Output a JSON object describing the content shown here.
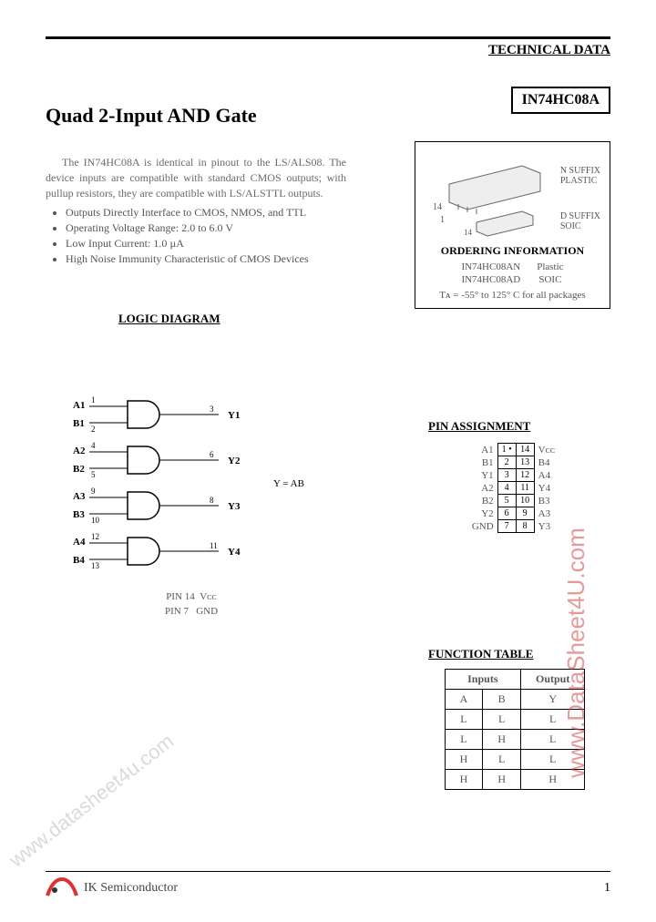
{
  "header": {
    "tech_data": "TECHNICAL DATA"
  },
  "part_number": "IN74HC08A",
  "title": "Quad 2-Input AND Gate",
  "description": "The IN74HC08A is identical in pinout to the LS/ALS08. The device inputs are compatible with standard CMOS outputs; with pullup resistors, they are compatible with LS/ALSTTL outputs.",
  "features": [
    "Outputs Directly Interface to CMOS, NMOS, and TTL",
    "Operating Voltage Range: 2.0 to 6.0 V",
    "Low Input Current: 1.0 µA",
    "High Noise Immunity Characteristic of CMOS Devices"
  ],
  "ordering": {
    "n_suffix": "N SUFFIX\nPLASTIC",
    "d_suffix": "D SUFFIX\nSOIC",
    "title": "ORDERING INFORMATION",
    "rows": [
      {
        "pn": "IN74HC08AN",
        "pkg": "Plastic"
      },
      {
        "pn": "IN74HC08AD",
        "pkg": "SOIC"
      }
    ],
    "temp": "Tᴀ = -55° to 125° C for all packages"
  },
  "logic": {
    "title": "LOGIC DIAGRAM",
    "gates": [
      {
        "a": "A1",
        "ap": "1",
        "b": "B1",
        "bp": "2",
        "y": "Y1",
        "yp": "3"
      },
      {
        "a": "A2",
        "ap": "4",
        "b": "B2",
        "bp": "5",
        "y": "Y2",
        "yp": "6"
      },
      {
        "a": "A3",
        "ap": "9",
        "b": "B3",
        "bp": "10",
        "y": "Y3",
        "yp": "8"
      },
      {
        "a": "A4",
        "ap": "12",
        "b": "B4",
        "bp": "13",
        "y": "Y4",
        "yp": "11"
      }
    ],
    "equation": "Y = AB",
    "pin14": "PIN 14  Vᴄᴄ",
    "pin7": "PIN 7   GND"
  },
  "pin_assignment": {
    "title": "PIN ASSIGNMENT",
    "rows": [
      {
        "l": "A1",
        "ln": "1",
        "rn": "14",
        "r": "Vᴄᴄ"
      },
      {
        "l": "B1",
        "ln": "2",
        "rn": "13",
        "r": "B4"
      },
      {
        "l": "Y1",
        "ln": "3",
        "rn": "12",
        "r": "A4"
      },
      {
        "l": "A2",
        "ln": "4",
        "rn": "11",
        "r": "Y4"
      },
      {
        "l": "B2",
        "ln": "5",
        "rn": "10",
        "r": "B3"
      },
      {
        "l": "Y2",
        "ln": "6",
        "rn": "9",
        "r": "A3"
      },
      {
        "l": "GND",
        "ln": "7",
        "rn": "8",
        "r": "Y3"
      }
    ]
  },
  "function_table": {
    "title": "FUNCTION TABLE",
    "header_inputs": "Inputs",
    "header_output": "Output",
    "cols": [
      "A",
      "B",
      "Y"
    ],
    "rows": [
      [
        "L",
        "L",
        "L"
      ],
      [
        "L",
        "H",
        "L"
      ],
      [
        "H",
        "L",
        "L"
      ],
      [
        "H",
        "H",
        "H"
      ]
    ]
  },
  "footer": {
    "company": "IK Semiconductor",
    "page": "1"
  },
  "watermarks": {
    "wm1": "www.datasheet4u.com",
    "wm2": "www.DataSheet4U.com"
  },
  "colors": {
    "text_muted": "#6a6a6a",
    "border": "#000000",
    "watermark_red": "rgba(210,70,70,0.55)",
    "watermark_gray": "rgba(150,150,150,0.35)"
  }
}
